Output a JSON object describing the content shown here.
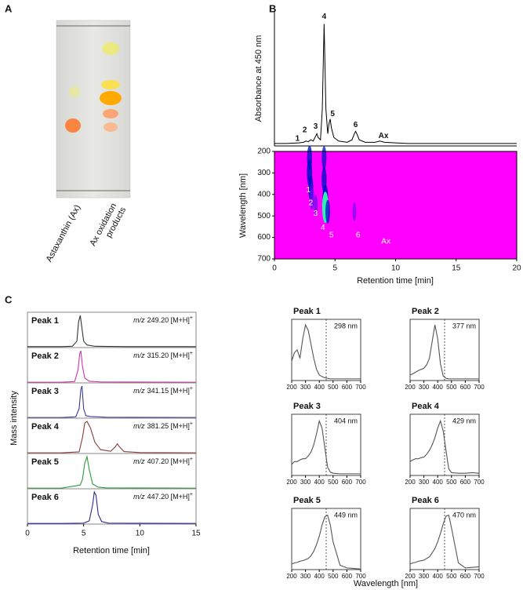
{
  "panel_a": {
    "panel_label": "A",
    "lane_1": "Astaxanthin (Ax)",
    "lane_2": [
      "Ax oxidation",
      "products"
    ]
  },
  "chart_data": [
    {
      "type": "line",
      "panel_label": "B",
      "ylabel": "Absorbance at 450 nm",
      "xlim": [
        0,
        20
      ],
      "ylim": [
        0,
        1.1
      ],
      "x": [
        0,
        1,
        2,
        2.4,
        2.6,
        2.8,
        3.0,
        3.2,
        3.4,
        3.5,
        3.6,
        3.8,
        3.95,
        4.1,
        4.25,
        4.4,
        4.5,
        4.6,
        4.7,
        4.9,
        5.3,
        6.0,
        6.4,
        6.6,
        6.7,
        6.8,
        7.0,
        7.5,
        8.3,
        8.7,
        9.1,
        10,
        11,
        14,
        20
      ],
      "series": [
        {
          "color": "#000000",
          "values": [
            0.02,
            0.02,
            0.025,
            0.03,
            0.04,
            0.035,
            0.05,
            0.04,
            0.08,
            0.1,
            0.07,
            0.05,
            0.3,
            1.0,
            0.3,
            0.1,
            0.18,
            0.22,
            0.15,
            0.07,
            0.04,
            0.03,
            0.05,
            0.1,
            0.12,
            0.1,
            0.05,
            0.03,
            0.03,
            0.04,
            0.03,
            0.025,
            0.02,
            0.02,
            0.02
          ]
        }
      ],
      "annotations": [
        {
          "text": "1",
          "x": 1.9,
          "y": 0.06
        },
        {
          "text": "2",
          "x": 2.5,
          "y": 0.13
        },
        {
          "text": "3",
          "x": 3.4,
          "y": 0.16
        },
        {
          "text": "4",
          "x": 4.1,
          "y": 1.06
        },
        {
          "text": "5",
          "x": 4.8,
          "y": 0.26
        },
        {
          "text": "6",
          "x": 6.7,
          "y": 0.17
        },
        {
          "text": "Ax",
          "x": 9.0,
          "y": 0.08
        }
      ]
    },
    {
      "type": "heatmap",
      "ylabel": "Wavelength [nm]",
      "xlabel": "Retention time [min]",
      "xlim": [
        0,
        20
      ],
      "ylim": [
        700,
        200
      ],
      "xticks": [
        0,
        5,
        10,
        15,
        20
      ],
      "yticks": [
        200,
        300,
        400,
        500,
        600,
        700
      ],
      "background": "#ff00ff",
      "colormap": [
        "#5a10f0",
        "#0010c8",
        "#30f0b0"
      ],
      "annotation_color": "#ffffff",
      "x": [
        2.9,
        2.9,
        3.0,
        3.1,
        3.4,
        4.1,
        4.1,
        4.2,
        4.2,
        4.4,
        6.6
      ],
      "y": [
        230,
        300,
        370,
        420,
        450,
        230,
        330,
        420,
        460,
        480,
        480
      ],
      "values": [
        0.6,
        0.7,
        0.6,
        0.4,
        0.3,
        0.5,
        0.6,
        0.8,
        1.0,
        0.5,
        0.2
      ],
      "annotations": [
        {
          "text": "1",
          "x": 2.8,
          "y": 380
        },
        {
          "text": "2",
          "x": 3.0,
          "y": 440
        },
        {
          "text": "3",
          "x": 3.4,
          "y": 490
        },
        {
          "text": "4",
          "x": 4.0,
          "y": 555
        },
        {
          "text": "5",
          "x": 4.7,
          "y": 590
        },
        {
          "text": "6",
          "x": 6.9,
          "y": 590
        },
        {
          "text": "Ax",
          "x": 9.2,
          "y": 620
        }
      ]
    },
    {
      "type": "line",
      "panel_label": "C",
      "ylabel": "Mass intensity",
      "title": "Peak 1",
      "annotation": [
        "m/z",
        "249.20 [M+H]",
        "+"
      ],
      "xlim": [
        0,
        15
      ],
      "ylim": [
        0,
        1.1
      ],
      "x": [
        0,
        3,
        4,
        4.4,
        4.55,
        4.7,
        4.85,
        5.0,
        5.3,
        6,
        9,
        15
      ],
      "series": [
        {
          "color": "#333333",
          "values": [
            0.03,
            0.03,
            0.04,
            0.2,
            0.8,
            1.0,
            0.6,
            0.2,
            0.08,
            0.04,
            0.03,
            0.03
          ]
        }
      ]
    },
    {
      "type": "line",
      "title": "Peak 2",
      "annotation": [
        "m/z",
        "315.20 [M+H]",
        "+"
      ],
      "xlim": [
        0,
        15
      ],
      "ylim": [
        0,
        1.1
      ],
      "x": [
        0,
        3,
        4.2,
        4.5,
        4.65,
        4.75,
        4.9,
        5.1,
        5.5,
        6.5,
        15
      ],
      "series": [
        {
          "color": "#cc33aa",
          "values": [
            0.02,
            0.02,
            0.04,
            0.4,
            0.9,
            1.0,
            0.5,
            0.15,
            0.05,
            0.03,
            0.02
          ]
        }
      ]
    },
    {
      "type": "line",
      "title": "Peak 3",
      "annotation": [
        "m/z",
        "341.15 [M+H]",
        "+"
      ],
      "xlim": [
        0,
        15
      ],
      "ylim": [
        0,
        1.1
      ],
      "x": [
        0,
        3,
        4.3,
        4.6,
        4.75,
        4.85,
        5.0,
        5.2,
        5.6,
        7,
        15
      ],
      "series": [
        {
          "color": "#3a3a90",
          "values": [
            0.02,
            0.02,
            0.04,
            0.3,
            0.9,
            1.0,
            0.3,
            0.08,
            0.05,
            0.03,
            0.02
          ]
        }
      ]
    },
    {
      "type": "line",
      "title": "Peak 4",
      "annotation": [
        "m/z",
        "381.25 [M+H]",
        "+"
      ],
      "xlim": [
        0,
        15
      ],
      "ylim": [
        0,
        1.1
      ],
      "x": [
        0,
        3,
        4.6,
        4.9,
        5.1,
        5.3,
        5.6,
        6.0,
        6.5,
        7.4,
        7.8,
        8.0,
        8.2,
        8.6,
        10,
        15
      ],
      "series": [
        {
          "color": "#8b3a3a",
          "values": [
            0.02,
            0.02,
            0.05,
            0.5,
            0.95,
            1.0,
            0.8,
            0.35,
            0.12,
            0.07,
            0.2,
            0.3,
            0.2,
            0.06,
            0.03,
            0.02
          ]
        }
      ]
    },
    {
      "type": "line",
      "title": "Peak 5",
      "annotation": [
        "m/z",
        "407.20 [M+H]",
        "+"
      ],
      "xlim": [
        0,
        15
      ],
      "ylim": [
        0,
        1.1
      ],
      "x": [
        0,
        3,
        4.4,
        4.7,
        4.9,
        5.1,
        5.3,
        5.5,
        5.8,
        6.3,
        7,
        15
      ],
      "series": [
        {
          "color": "#2e9a3a",
          "values": [
            0.02,
            0.02,
            0.1,
            0.12,
            0.3,
            0.8,
            1.0,
            0.6,
            0.15,
            0.05,
            0.03,
            0.02
          ]
        }
      ]
    },
    {
      "type": "line",
      "title": "Peak 6",
      "annotation": [
        "m/z",
        "447.20 [M+H]",
        "+"
      ],
      "xlim": [
        0,
        15
      ],
      "ylim": [
        0,
        1.1
      ],
      "xticks": [
        0,
        5,
        10,
        15
      ],
      "xlabel": "Retention time [min]",
      "x": [
        0,
        3,
        5.0,
        5.5,
        5.8,
        5.95,
        6.1,
        6.3,
        6.6,
        7.2,
        15
      ],
      "series": [
        {
          "color": "#2a2a8a",
          "values": [
            0.02,
            0.02,
            0.03,
            0.1,
            0.6,
            1.0,
            0.9,
            0.3,
            0.08,
            0.03,
            0.02
          ]
        }
      ]
    },
    {
      "type": "line",
      "title": "Peak 1",
      "peak_label": "298 nm",
      "xlim": [
        200,
        700
      ],
      "ylim": [
        0,
        1.1
      ],
      "xticks": [
        200,
        300,
        400,
        500,
        600,
        700
      ],
      "ref_line": 450,
      "x": [
        200,
        220,
        240,
        260,
        280,
        300,
        320,
        340,
        360,
        380,
        400,
        420,
        440,
        460,
        480,
        500,
        550,
        600,
        650,
        700
      ],
      "series": [
        {
          "color": "#555555",
          "values": [
            0.35,
            0.5,
            0.55,
            0.4,
            0.75,
            1.0,
            0.9,
            0.65,
            0.4,
            0.2,
            0.1,
            0.07,
            0.05,
            0.04,
            0.03,
            0.03,
            0.03,
            0.03,
            0.03,
            0.03
          ]
        }
      ]
    },
    {
      "type": "line",
      "title": "Peak 2",
      "peak_label": "377 nm",
      "xlim": [
        200,
        700
      ],
      "ylim": [
        0,
        1.1
      ],
      "xticks": [
        200,
        300,
        400,
        500,
        600,
        700
      ],
      "ref_line": 450,
      "x": [
        200,
        220,
        240,
        260,
        280,
        300,
        320,
        340,
        360,
        380,
        400,
        420,
        440,
        460,
        480,
        500,
        550,
        600,
        650,
        700
      ],
      "series": [
        {
          "color": "#555555",
          "values": [
            0.1,
            0.12,
            0.15,
            0.18,
            0.2,
            0.22,
            0.28,
            0.4,
            0.7,
            1.0,
            0.75,
            0.3,
            0.08,
            0.04,
            0.03,
            0.03,
            0.03,
            0.03,
            0.03,
            0.03
          ]
        }
      ]
    },
    {
      "type": "line",
      "title": "Peak 3",
      "peak_label": "404 nm",
      "xlim": [
        200,
        700
      ],
      "ylim": [
        0,
        1.1
      ],
      "xticks": [
        200,
        300,
        400,
        500,
        600,
        700
      ],
      "ref_line": 450,
      "x": [
        200,
        220,
        240,
        260,
        280,
        300,
        320,
        340,
        360,
        380,
        400,
        420,
        440,
        460,
        480,
        500,
        550,
        600,
        650,
        700
      ],
      "series": [
        {
          "color": "#555555",
          "values": [
            0.2,
            0.25,
            0.25,
            0.28,
            0.3,
            0.3,
            0.35,
            0.42,
            0.55,
            0.75,
            0.98,
            0.85,
            0.5,
            0.15,
            0.06,
            0.04,
            0.03,
            0.03,
            0.03,
            0.03
          ]
        }
      ]
    },
    {
      "type": "line",
      "title": "Peak 4",
      "peak_label": "429 nm",
      "xlim": [
        200,
        700
      ],
      "ylim": [
        0,
        1.1
      ],
      "xticks": [
        200,
        300,
        400,
        500,
        600,
        700
      ],
      "ref_line": 450,
      "x": [
        200,
        220,
        240,
        260,
        280,
        300,
        320,
        340,
        360,
        380,
        400,
        420,
        440,
        460,
        480,
        500,
        550,
        600,
        650,
        700
      ],
      "series": [
        {
          "color": "#555555",
          "values": [
            0.25,
            0.28,
            0.3,
            0.3,
            0.32,
            0.33,
            0.38,
            0.45,
            0.55,
            0.68,
            0.85,
            0.98,
            0.8,
            0.45,
            0.12,
            0.05,
            0.04,
            0.04,
            0.05,
            0.04
          ]
        }
      ]
    },
    {
      "type": "line",
      "title": "Peak 5",
      "peak_label": "449 nm",
      "xlim": [
        200,
        700
      ],
      "ylim": [
        0,
        1.1
      ],
      "xticks": [
        200,
        300,
        400,
        500,
        600,
        700
      ],
      "ref_line": 450,
      "x": [
        200,
        220,
        240,
        260,
        280,
        300,
        320,
        340,
        360,
        380,
        400,
        420,
        440,
        460,
        480,
        500,
        550,
        600,
        650,
        700
      ],
      "series": [
        {
          "color": "#555555",
          "values": [
            0.1,
            0.12,
            0.13,
            0.15,
            0.16,
            0.18,
            0.2,
            0.25,
            0.33,
            0.45,
            0.6,
            0.8,
            0.95,
            0.98,
            0.8,
            0.5,
            0.08,
            0.03,
            0.02,
            0.01
          ]
        }
      ]
    },
    {
      "type": "line",
      "title": "Peak 6",
      "peak_label": "470 nm",
      "xlim": [
        200,
        700
      ],
      "ylim": [
        0,
        1.1
      ],
      "xticks": [
        200,
        300,
        400,
        500,
        600,
        700
      ],
      "ref_line": 450,
      "xlabel": "Wavelength [nm]",
      "x": [
        200,
        220,
        240,
        260,
        280,
        300,
        320,
        340,
        360,
        380,
        400,
        420,
        440,
        460,
        480,
        500,
        550,
        600,
        650,
        700
      ],
      "series": [
        {
          "color": "#555555",
          "values": [
            0.1,
            0.12,
            0.13,
            0.15,
            0.16,
            0.17,
            0.2,
            0.23,
            0.3,
            0.38,
            0.5,
            0.65,
            0.82,
            0.96,
            0.98,
            0.75,
            0.12,
            0.03,
            0.04,
            0.05
          ]
        }
      ]
    }
  ]
}
